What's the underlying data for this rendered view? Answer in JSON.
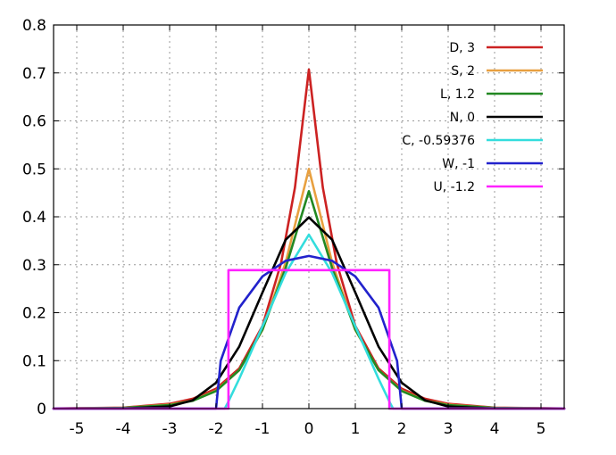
{
  "chart_data": {
    "type": "line",
    "title": "",
    "xlabel": "",
    "ylabel": "",
    "xlim": [
      -5.5,
      5.5
    ],
    "ylim": [
      0,
      0.8
    ],
    "grid": true,
    "legend_position": "top-right",
    "x_ticks": [
      "-5",
      "-4",
      "-3",
      "-2",
      "-1",
      "0",
      "1",
      "2",
      "3",
      "4",
      "5"
    ],
    "x_tick_values": [
      -5,
      -4,
      -3,
      -2,
      -1,
      0,
      1,
      2,
      3,
      4,
      5
    ],
    "y_ticks": [
      "0",
      "0.1",
      "0.2",
      "0.3",
      "0.4",
      "0.5",
      "0.6",
      "0.7",
      "0.8"
    ],
    "y_tick_values": [
      0,
      0.1,
      0.2,
      0.3,
      0.4,
      0.5,
      0.6,
      0.7,
      0.8
    ],
    "series": [
      {
        "name": "D,  3",
        "color": "#cc2222",
        "x": [
          -5.5,
          -4,
          -3,
          -2.5,
          -2,
          -1.5,
          -1,
          -0.6,
          -0.3,
          0,
          0.3,
          0.6,
          1,
          1.5,
          2,
          2.5,
          3,
          4,
          5.5
        ],
        "y": [
          0.0003,
          0.002,
          0.0101,
          0.0206,
          0.0414,
          0.0837,
          0.1722,
          0.3032,
          0.4613,
          0.7071,
          0.4613,
          0.3032,
          0.1722,
          0.0837,
          0.0414,
          0.0206,
          0.0101,
          0.002,
          0.0003
        ]
      },
      {
        "name": "S,  2",
        "color": "#e8a040",
        "x": [
          -5.5,
          -4,
          -3,
          -2.5,
          -2,
          -1.5,
          -1,
          -0.5,
          0,
          0.5,
          1,
          1.5,
          2,
          2.5,
          3,
          4,
          5.5
        ],
        "y": [
          0.0002,
          0.0016,
          0.0081,
          0.0172,
          0.0375,
          0.0803,
          0.164,
          0.3049,
          0.5,
          0.3049,
          0.164,
          0.0803,
          0.0375,
          0.0172,
          0.0081,
          0.0016,
          0.0002
        ]
      },
      {
        "name": "L,  1.2",
        "color": "#228822",
        "x": [
          -5.5,
          -4,
          -3,
          -2.5,
          -2,
          -1.5,
          -1,
          -0.5,
          0,
          0.5,
          1,
          1.5,
          2,
          2.5,
          3,
          4,
          5.5
        ],
        "y": [
          0.0001,
          0.0014,
          0.0073,
          0.0163,
          0.0366,
          0.0801,
          0.1648,
          0.2934,
          0.4534,
          0.2934,
          0.1648,
          0.0801,
          0.0366,
          0.0163,
          0.0073,
          0.0014,
          0.0001
        ]
      },
      {
        "name": "N,  0",
        "color": "#000000",
        "x": [
          -5.5,
          -4,
          -3,
          -2.5,
          -2,
          -1.5,
          -1,
          -0.5,
          0,
          0.5,
          1,
          1.5,
          2,
          2.5,
          3,
          4,
          5.5
        ],
        "y": [
          0,
          0.0001,
          0.0044,
          0.0175,
          0.054,
          0.1295,
          0.242,
          0.3521,
          0.3989,
          0.3521,
          0.242,
          0.1295,
          0.054,
          0.0175,
          0.0044,
          0.0001,
          0
        ]
      },
      {
        "name": "C, -0.59376",
        "color": "#33dddd",
        "x": [
          -5.5,
          -1.8138,
          -1.75,
          -1.5,
          -1,
          -0.5,
          0,
          0.5,
          1,
          1.5,
          1.75,
          1.8138,
          5.5
        ],
        "y": [
          0,
          0,
          0.0116,
          0.0624,
          0.1717,
          0.2829,
          0.3628,
          0.2829,
          0.1717,
          0.0624,
          0.0116,
          0,
          0
        ]
      },
      {
        "name": "W, -1",
        "color": "#2222cc",
        "x": [
          -5.5,
          -2,
          -1.9,
          -1.5,
          -1,
          -0.5,
          0,
          0.5,
          1,
          1.5,
          1.9,
          2,
          5.5
        ],
        "y": [
          0,
          0,
          0.0994,
          0.2106,
          0.2757,
          0.3082,
          0.3183,
          0.3082,
          0.2757,
          0.2106,
          0.0994,
          0,
          0
        ]
      },
      {
        "name": "U, -1.2",
        "color": "#ff22ff",
        "x": [
          -5.5,
          -1.732,
          -1.732,
          1.732,
          1.732,
          5.5
        ],
        "y": [
          0,
          0,
          0.2887,
          0.2887,
          0,
          0
        ]
      }
    ]
  }
}
